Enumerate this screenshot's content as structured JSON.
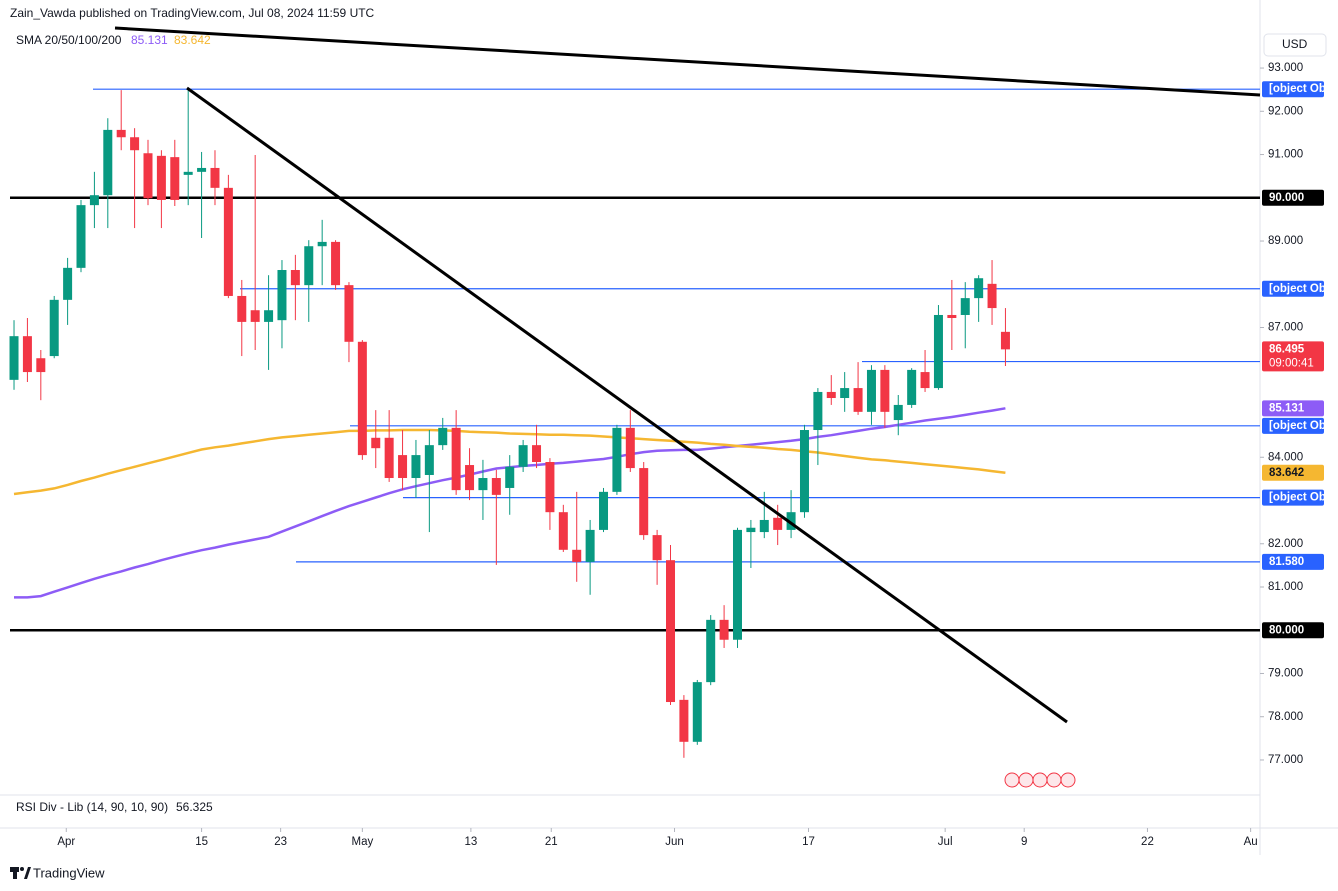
{
  "chart_data": {
    "type": "candlestick",
    "header": "Zain_Vawda published on TradingView.com, Jul 08, 2024 11:59 UTC",
    "currency": "USD",
    "indicator": {
      "name": "SMA 20/50/100/200",
      "series": [
        {
          "color": "#8d5cf6",
          "values": [
            80.76,
            80.76,
            80.79,
            80.89,
            80.99,
            81.09,
            81.19,
            81.28,
            81.36,
            81.45,
            81.53,
            81.62,
            81.7,
            81.78,
            81.85,
            81.91,
            81.98,
            82.04,
            82.1,
            82.16,
            82.28,
            82.4,
            82.52,
            82.64,
            82.76,
            82.87,
            82.97,
            83.07,
            83.17,
            83.26,
            83.33,
            83.4,
            83.47,
            83.53,
            83.6,
            83.67,
            83.74,
            83.77,
            83.8,
            83.82,
            83.85,
            83.87,
            83.9,
            83.93,
            83.96,
            84.01,
            84.07,
            84.12,
            84.15,
            84.16,
            84.17,
            84.17,
            84.2,
            84.23,
            84.26,
            84.29,
            84.32,
            84.35,
            84.38,
            84.42,
            84.47,
            84.51,
            84.56,
            84.61,
            84.66,
            84.7,
            84.75,
            84.8,
            84.85,
            84.89,
            84.93,
            84.98,
            85.03,
            85.08,
            85.131
          ]
        },
        {
          "color": "#f5b731",
          "values": [
            83.15,
            83.19,
            83.23,
            83.28,
            83.36,
            83.45,
            83.53,
            83.62,
            83.7,
            83.78,
            83.86,
            83.94,
            84.02,
            84.1,
            84.18,
            84.23,
            84.27,
            84.32,
            84.37,
            84.42,
            84.46,
            84.49,
            84.52,
            84.55,
            84.58,
            84.61,
            84.61,
            84.62,
            84.62,
            84.63,
            84.63,
            84.63,
            84.62,
            84.61,
            84.59,
            84.58,
            84.57,
            84.55,
            84.54,
            84.53,
            84.52,
            84.52,
            84.51,
            84.5,
            84.48,
            84.46,
            84.44,
            84.42,
            84.4,
            84.38,
            84.36,
            84.34,
            84.31,
            84.29,
            84.26,
            84.24,
            84.22,
            84.19,
            84.17,
            84.14,
            84.11,
            84.07,
            84.03,
            83.99,
            83.95,
            83.93,
            83.9,
            83.87,
            83.84,
            83.81,
            83.78,
            83.75,
            83.72,
            83.68,
            83.642
          ]
        }
      ]
    },
    "up_color": "#089981",
    "down_color": "#f23645",
    "ohlc": [
      [
        85.79,
        87.17,
        85.56,
        86.8
      ],
      [
        86.8,
        87.22,
        85.74,
        85.97
      ],
      [
        86.29,
        86.48,
        85.32,
        85.97
      ],
      [
        86.34,
        87.73,
        86.29,
        87.64
      ],
      [
        87.64,
        88.61,
        87.06,
        88.38
      ],
      [
        88.38,
        89.95,
        88.28,
        89.83
      ],
      [
        89.83,
        90.6,
        89.3,
        90.06
      ],
      [
        90.06,
        91.84,
        89.3,
        91.57
      ],
      [
        91.57,
        92.49,
        91.1,
        91.4
      ],
      [
        91.4,
        91.61,
        89.3,
        91.1
      ],
      [
        91.03,
        91.34,
        89.83,
        89.99
      ],
      [
        90.97,
        91.1,
        89.3,
        89.95
      ],
      [
        90.94,
        91.34,
        89.81,
        89.95
      ],
      [
        90.53,
        92.54,
        89.83,
        90.6
      ],
      [
        90.6,
        91.06,
        89.07,
        90.69
      ],
      [
        90.69,
        91.1,
        89.83,
        90.23
      ],
      [
        90.23,
        90.53,
        87.68,
        87.73
      ],
      [
        87.73,
        88.1,
        86.34,
        87.13
      ],
      [
        87.4,
        90.99,
        86.48,
        87.13
      ],
      [
        87.13,
        88.21,
        86.02,
        87.4
      ],
      [
        87.17,
        88.56,
        86.52,
        88.33
      ],
      [
        88.33,
        88.68,
        87.17,
        87.98
      ],
      [
        87.98,
        89.02,
        87.13,
        88.88
      ],
      [
        88.88,
        89.49,
        87.98,
        88.98
      ],
      [
        88.98,
        89.02,
        87.87,
        87.98
      ],
      [
        87.98,
        88.05,
        86.2,
        86.67
      ],
      [
        86.67,
        86.71,
        83.94,
        84.05
      ],
      [
        84.45,
        85.09,
        83.75,
        84.21
      ],
      [
        84.45,
        85.09,
        83.43,
        83.52
      ],
      [
        84.05,
        84.63,
        83.24,
        83.52
      ],
      [
        83.52,
        84.4,
        83.06,
        84.05
      ],
      [
        83.59,
        84.63,
        82.27,
        84.28
      ],
      [
        84.28,
        84.91,
        84.17,
        84.68
      ],
      [
        84.68,
        85.09,
        83.13,
        83.24
      ],
      [
        83.82,
        84.21,
        83.01,
        83.24
      ],
      [
        83.24,
        83.94,
        82.55,
        83.52
      ],
      [
        83.52,
        83.71,
        81.51,
        83.13
      ],
      [
        83.29,
        84.05,
        82.67,
        83.78
      ],
      [
        83.78,
        84.4,
        83.66,
        84.28
      ],
      [
        84.28,
        84.75,
        83.75,
        83.89
      ],
      [
        83.89,
        83.98,
        82.32,
        82.73
      ],
      [
        82.73,
        82.9,
        81.81,
        81.86
      ],
      [
        81.86,
        83.2,
        81.12,
        81.58
      ],
      [
        81.58,
        82.55,
        80.82,
        82.32
      ],
      [
        82.32,
        83.29,
        82.27,
        83.2
      ],
      [
        83.2,
        84.75,
        83.13,
        84.68
      ],
      [
        84.68,
        85.09,
        83.66,
        83.75
      ],
      [
        83.75,
        83.89,
        82.09,
        82.2
      ],
      [
        82.2,
        82.32,
        81.05,
        81.62
      ],
      [
        81.62,
        81.97,
        78.27,
        78.34
      ],
      [
        78.39,
        78.5,
        77.05,
        77.42
      ],
      [
        77.42,
        78.85,
        77.35,
        78.8
      ],
      [
        78.8,
        80.35,
        78.73,
        80.24
      ],
      [
        80.24,
        80.58,
        79.59,
        79.78
      ],
      [
        79.78,
        82.37,
        79.59,
        82.32
      ],
      [
        82.27,
        82.55,
        81.44,
        82.37
      ],
      [
        82.27,
        83.2,
        82.13,
        82.55
      ],
      [
        82.6,
        82.9,
        81.97,
        82.32
      ],
      [
        82.32,
        83.24,
        82.13,
        82.73
      ],
      [
        82.73,
        84.75,
        82.6,
        84.63
      ],
      [
        84.63,
        85.6,
        83.82,
        85.51
      ],
      [
        85.51,
        85.9,
        85.21,
        85.37
      ],
      [
        85.37,
        85.97,
        85.05,
        85.6
      ],
      [
        85.6,
        86.2,
        84.98,
        85.05
      ],
      [
        85.05,
        86.13,
        84.75,
        86.02
      ],
      [
        86.02,
        86.13,
        84.68,
        85.05
      ],
      [
        84.86,
        85.44,
        84.51,
        85.21
      ],
      [
        85.21,
        86.06,
        85.14,
        86.02
      ],
      [
        85.97,
        86.48,
        85.51,
        85.6
      ],
      [
        85.6,
        87.52,
        85.56,
        87.29
      ],
      [
        87.29,
        88.1,
        86.48,
        87.22
      ],
      [
        87.29,
        88.05,
        86.52,
        87.68
      ],
      [
        87.68,
        88.21,
        87.13,
        88.14
      ],
      [
        88.01,
        88.56,
        87.06,
        87.45
      ],
      [
        86.9,
        87.45,
        86.11,
        86.495
      ]
    ],
    "countdown": "09:00:41",
    "levels": [
      {
        "value": 92.511,
        "color": "#2962ff"
      },
      {
        "value": 90,
        "label": "90.000",
        "color": "#000000"
      },
      {
        "value": 87.897,
        "color": "#2962ff"
      },
      {
        "value": 86.213,
        "color": "#2962ff"
      },
      {
        "value": 84.727,
        "color": "#2962ff"
      },
      {
        "value": 83.067,
        "color": "#2962ff"
      },
      {
        "value": 81.58,
        "label": "81.580",
        "color": "#2962ff"
      },
      {
        "value": 80,
        "label": "80.000",
        "color": "#000000"
      }
    ],
    "xlim": [
      -0.3,
      93
    ],
    "ylim": [
      76.19,
      93.88
    ],
    "yticks": [
      {
        "value": 93,
        "label": "93.000"
      },
      {
        "value": 92,
        "label": "92.000"
      },
      {
        "value": 91,
        "label": "91.000"
      },
      {
        "value": 89,
        "label": "89.000"
      },
      {
        "value": 87,
        "label": "87.000"
      },
      {
        "value": 84,
        "label": "84.000"
      },
      {
        "value": 82,
        "label": "82.000"
      },
      {
        "value": 81,
        "label": "81.000"
      },
      {
        "value": 79,
        "label": "79.000"
      },
      {
        "value": 78,
        "label": "78.000"
      },
      {
        "value": 77,
        "label": "77.000"
      }
    ],
    "xticks": [
      {
        "value": 3.9,
        "label": "Apr"
      },
      {
        "value": 14,
        "label": "15"
      },
      {
        "value": 19.9,
        "label": "23"
      },
      {
        "value": 26,
        "label": "May"
      },
      {
        "value": 34.1,
        "label": "13"
      },
      {
        "value": 40.1,
        "label": "21"
      },
      {
        "value": 49.3,
        "label": "Jun"
      },
      {
        "value": 59.3,
        "label": "17"
      },
      {
        "value": 69.5,
        "label": "Jul"
      },
      {
        "value": 75.4,
        "label": "9"
      },
      {
        "value": 84.6,
        "label": "22"
      },
      {
        "value": 92.3,
        "label": "Au"
      }
    ],
    "lower_pane": {
      "name": "RSI Div - Lib (14, 90, 10, 90)",
      "value": 56.325
    },
    "brand": "TradingView"
  }
}
